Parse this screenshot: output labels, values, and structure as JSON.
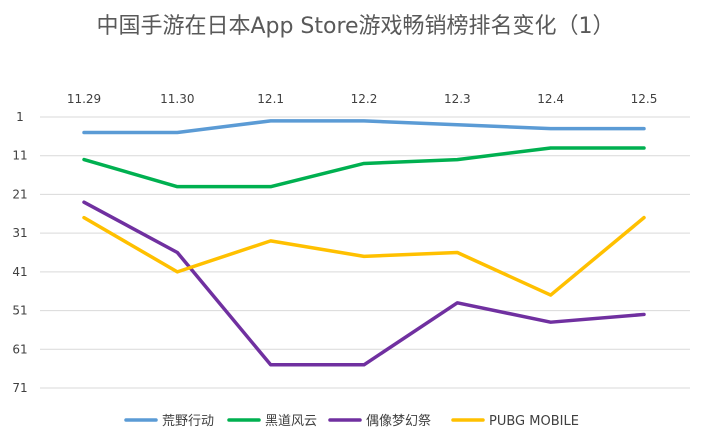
{
  "chart_data": {
    "type": "line",
    "title": "中国手游在日本App Store游戏畅销榜排名变化（1）",
    "xlabel": "",
    "ylabel": "",
    "categories": [
      "11.29",
      "11.30",
      "12.1",
      "12.2",
      "12.3",
      "12.4",
      "12.5"
    ],
    "y_ticks": [
      "1",
      "11",
      "21",
      "31",
      "41",
      "51",
      "61",
      "71"
    ],
    "ylim": [
      1,
      71
    ],
    "y_axis_reversed": true,
    "x_axis_position": "top",
    "grid": true,
    "legend_position": "bottom",
    "series": [
      {
        "name": "荒野行动",
        "color": "#5b9bd5",
        "values": [
          5,
          5,
          2,
          2,
          3,
          4,
          4
        ]
      },
      {
        "name": "黑道风云",
        "color": "#00b050",
        "values": [
          12,
          19,
          19,
          13,
          12,
          9,
          9
        ]
      },
      {
        "name": "偶像梦幻祭",
        "color": "#7030a0",
        "values": [
          23,
          36,
          65,
          65,
          49,
          54,
          52
        ]
      },
      {
        "name": "PUBG MOBILE",
        "color": "#ffc000",
        "values": [
          27,
          41,
          33,
          37,
          36,
          47,
          27
        ]
      }
    ]
  }
}
